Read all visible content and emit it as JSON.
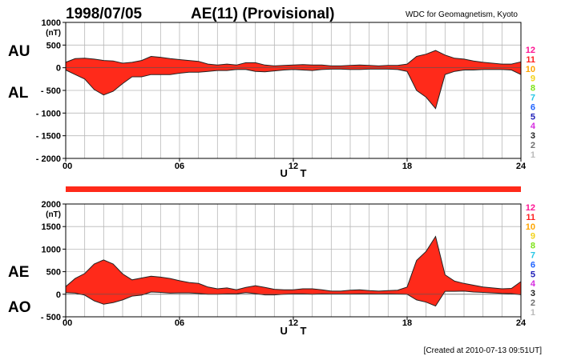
{
  "header": {
    "date": "1998/07/05",
    "title": "AE(11) (Provisional)",
    "org": "WDC for Geomagnetism, Kyoto"
  },
  "footer": {
    "created": "[Created at 2010-07-13 09:51UT]"
  },
  "colors": {
    "fill": "#ff2a1a",
    "outline": "#222222",
    "grid": "#b8b8b8",
    "axis": "#000000",
    "scale": [
      "#ff1493",
      "#ff2020",
      "#ffa500",
      "#f2d21a",
      "#7fe31a",
      "#27c7e6",
      "#1f63ff",
      "#2020b8",
      "#d62ee0",
      "#222222",
      "#707070",
      "#bbbbbb"
    ]
  },
  "station_scale": [
    "12",
    "11",
    "10",
    "9",
    "8",
    "7",
    "6",
    "5",
    "4",
    "3",
    "2",
    "1"
  ],
  "chart_data": [
    {
      "type": "area",
      "id": "au-al",
      "labels": {
        "upper": "AU",
        "lower": "AL"
      },
      "ylim": [
        -2000,
        1000
      ],
      "yunit": "(nT)",
      "yticks": [
        1000,
        500,
        0,
        -500,
        -1000,
        -1500,
        -2000
      ],
      "ytick_labels": [
        "1000",
        "500",
        "0",
        "- 500",
        "- 1000",
        "- 1500",
        "- 2000"
      ],
      "xlim": [
        0,
        24
      ],
      "xticks": [
        0,
        6,
        12,
        18,
        24
      ],
      "xtick_labels": [
        "00",
        "06",
        "12",
        "18",
        "24"
      ],
      "xlabel": "U T",
      "grid": true,
      "x_hours": [
        0,
        0.5,
        1,
        1.5,
        2,
        2.5,
        3,
        3.5,
        4,
        4.5,
        5,
        5.5,
        6,
        6.5,
        7,
        7.5,
        8,
        8.5,
        9,
        9.5,
        10,
        10.5,
        11,
        11.5,
        12,
        12.5,
        13,
        13.5,
        14,
        14.5,
        15,
        15.5,
        16,
        16.5,
        17,
        17.5,
        18,
        18.5,
        19,
        19.5,
        20,
        20.5,
        21,
        21.5,
        22,
        22.5,
        23,
        23.5,
        24
      ],
      "series": [
        {
          "name": "AU",
          "values": [
            120,
            200,
            210,
            190,
            160,
            150,
            100,
            120,
            160,
            250,
            230,
            200,
            180,
            160,
            140,
            80,
            60,
            80,
            60,
            110,
            110,
            60,
            40,
            50,
            60,
            70,
            60,
            60,
            40,
            40,
            50,
            60,
            50,
            40,
            50,
            50,
            80,
            250,
            300,
            380,
            280,
            210,
            190,
            150,
            120,
            100,
            80,
            80,
            130
          ]
        },
        {
          "name": "AL",
          "values": [
            -50,
            -150,
            -250,
            -480,
            -600,
            -520,
            -350,
            -200,
            -200,
            -150,
            -150,
            -150,
            -120,
            -100,
            -100,
            -80,
            -60,
            -60,
            -40,
            -40,
            -80,
            -90,
            -70,
            -50,
            -40,
            -50,
            -60,
            -40,
            -30,
            -30,
            -40,
            -40,
            -30,
            -30,
            -30,
            -40,
            -80,
            -500,
            -650,
            -900,
            -150,
            -80,
            -50,
            -50,
            -40,
            -40,
            -40,
            -50,
            -150
          ]
        }
      ]
    },
    {
      "type": "area",
      "id": "ae-ao",
      "labels": {
        "upper": "AE",
        "lower": "AO"
      },
      "ylim": [
        -500,
        2000
      ],
      "yunit": "(nT)",
      "yticks": [
        2000,
        1500,
        1000,
        500,
        0,
        -500
      ],
      "ytick_labels": [
        "2000",
        "1500",
        "1000",
        "500",
        "0",
        "- 500"
      ],
      "xlim": [
        0,
        24
      ],
      "xticks": [
        0,
        6,
        12,
        18,
        24
      ],
      "xtick_labels": [
        "00",
        "06",
        "12",
        "18",
        "24"
      ],
      "xlabel": "U T",
      "grid": true,
      "x_hours": [
        0,
        0.5,
        1,
        1.5,
        2,
        2.5,
        3,
        3.5,
        4,
        4.5,
        5,
        5.5,
        6,
        6.5,
        7,
        7.5,
        8,
        8.5,
        9,
        9.5,
        10,
        10.5,
        11,
        11.5,
        12,
        12.5,
        13,
        13.5,
        14,
        14.5,
        15,
        15.5,
        16,
        16.5,
        17,
        17.5,
        18,
        18.5,
        19,
        19.5,
        20,
        20.5,
        21,
        21.5,
        22,
        22.5,
        23,
        23.5,
        24
      ],
      "series": [
        {
          "name": "AE",
          "values": [
            170,
            350,
            460,
            670,
            760,
            670,
            450,
            320,
            360,
            400,
            380,
            350,
            300,
            260,
            240,
            160,
            120,
            140,
            100,
            150,
            190,
            150,
            110,
            100,
            100,
            120,
            120,
            100,
            70,
            70,
            90,
            100,
            80,
            70,
            80,
            90,
            160,
            750,
            950,
            1280,
            430,
            290,
            240,
            200,
            160,
            140,
            120,
            130,
            280
          ]
        },
        {
          "name": "AO",
          "values": [
            35,
            25,
            -20,
            -145,
            -220,
            -185,
            -125,
            -40,
            -20,
            50,
            40,
            25,
            30,
            30,
            20,
            0,
            0,
            10,
            10,
            35,
            15,
            -15,
            -15,
            0,
            10,
            10,
            0,
            10,
            5,
            5,
            5,
            10,
            10,
            5,
            10,
            5,
            0,
            -125,
            -175,
            -260,
            65,
            65,
            70,
            50,
            40,
            30,
            20,
            15,
            -10
          ]
        }
      ]
    }
  ]
}
